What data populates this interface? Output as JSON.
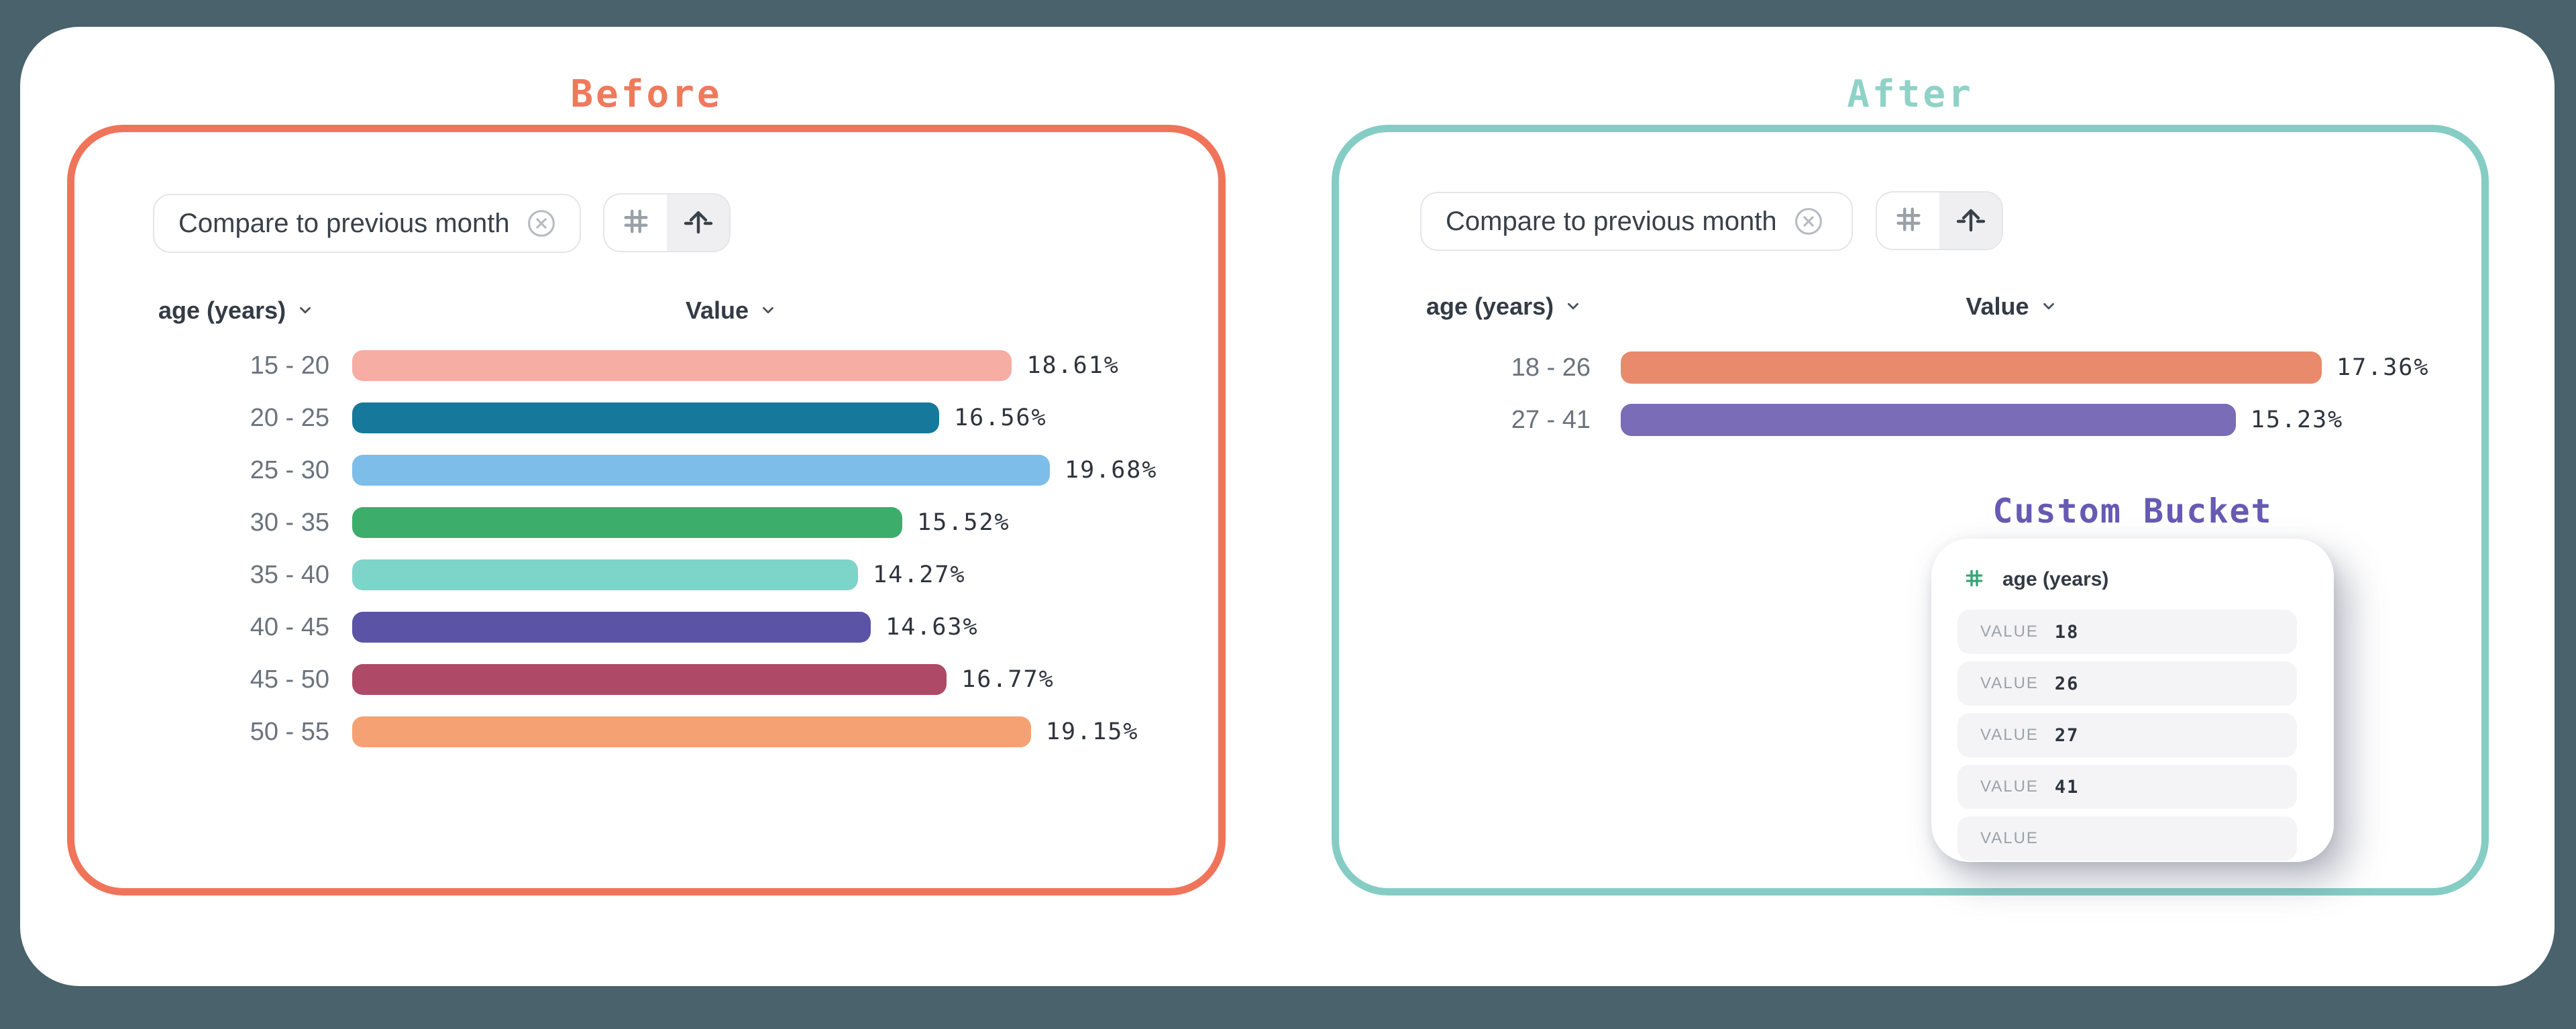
{
  "page": {
    "background": "#49626B",
    "card_color": "#FFFFFF"
  },
  "before": {
    "title": "Before",
    "accent": "#F0745A",
    "title_color": "#F0795C",
    "chip": {
      "label": "Compare to previous month",
      "dismiss_icon": "circle-x-icon"
    },
    "toolbar": {
      "left_icon": "hash-icon",
      "right_icon": "arrow-up-icon",
      "active": "right"
    },
    "columns": {
      "dimension": "age (years)",
      "measure": "Value"
    }
  },
  "after": {
    "title": "After",
    "accent": "#85CDC4",
    "title_color": "#8FD2C7",
    "chip": {
      "label": "Compare to previous month",
      "dismiss_icon": "circle-x-icon"
    },
    "toolbar": {
      "left_icon": "hash-icon",
      "right_icon": "arrow-up-icon",
      "active": "right"
    },
    "columns": {
      "dimension": "age (years)",
      "measure": "Value"
    },
    "bucket": {
      "title": "Custom Bucket",
      "title_color": "#665AB3",
      "field": "age (years)",
      "field_icon": "hash-icon",
      "hash_color": "#35A477",
      "value_label": "VALUE",
      "values": [
        "18",
        "26",
        "27",
        "41",
        ""
      ]
    }
  },
  "chart_data": [
    {
      "type": "bar",
      "orientation": "horizontal",
      "title": "Before",
      "categories": [
        "15 - 20",
        "20 - 25",
        "25 - 30",
        "30 - 35",
        "35 - 40",
        "40 - 45",
        "45 - 50",
        "50 - 55"
      ],
      "values": [
        18.61,
        16.56,
        19.68,
        15.52,
        14.27,
        14.63,
        16.77,
        19.15
      ],
      "value_labels": [
        "18.61%",
        "16.56%",
        "19.68%",
        "15.52%",
        "14.27%",
        "14.63%",
        "16.77%",
        "19.15%"
      ],
      "bar_colors": [
        "#F5ADA4",
        "#16799B",
        "#7DBDE9",
        "#3DAD6B",
        "#7DD4C9",
        "#5B53A6",
        "#AE4A67",
        "#F6A173"
      ],
      "xlabel": "Value",
      "ylabel": "age (years)",
      "xlim": [
        0,
        19.68
      ],
      "grid": false,
      "legend": false
    },
    {
      "type": "bar",
      "orientation": "horizontal",
      "title": "After",
      "categories": [
        "18 - 26",
        "27 - 41"
      ],
      "values": [
        17.36,
        15.23
      ],
      "value_labels": [
        "17.36%",
        "15.23%"
      ],
      "bar_colors": [
        "#E98A6C",
        "#7A6CB7"
      ],
      "xlabel": "Value",
      "ylabel": "age (years)",
      "xlim": [
        0,
        17.36
      ],
      "grid": false,
      "legend": false
    }
  ]
}
